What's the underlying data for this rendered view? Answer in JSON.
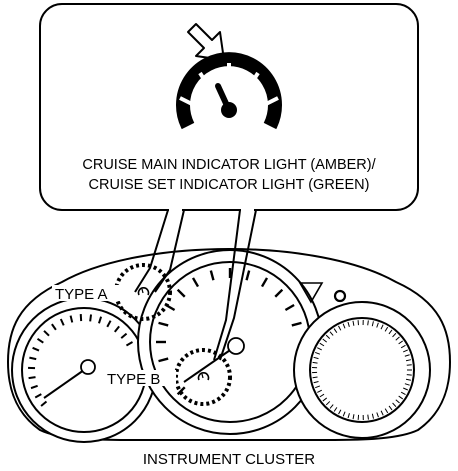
{
  "callout": {
    "line1": "CRUISE MAIN INDICATOR LIGHT (AMBER)/",
    "line2": "CRUISE SET INDICATOR LIGHT (GREEN)"
  },
  "labels": {
    "type_a": "TYPE A",
    "type_b": "TYPE B",
    "caption": "INSTRUMENT CLUSTER"
  },
  "icons": {
    "cruise_indicator": "cruise-control-speedometer-icon",
    "pointer": "outline-arrow-icon"
  }
}
